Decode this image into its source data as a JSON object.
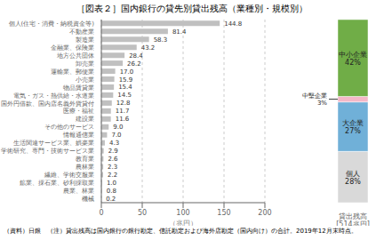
{
  "chart_data": [
    {
      "type": "bar",
      "title": "［図表２］国内銀行の貸先別貸出残高（業種別・規模別）",
      "footnote": "（資料）日銀　（注）貸出残高は国内銀行の銀行勘定、信託勘定および海外店勘定（国内向け）の合計。2019年12月末時点。",
      "orientation": "horizontal",
      "categories": [
        "個人(住宅・消費・納税資金等)",
        "不動産業",
        "製造業",
        "金融業、保険業",
        "地方公共団体",
        "卸売業",
        "運輸業、郵便業",
        "小売業",
        "物品賃貸業",
        "電気・ガス・熱供給・水道業",
        "国外円借款、国内店名義外貨貸付",
        "医療・福祉",
        "建設業",
        "その他のサービス",
        "情報通信業",
        "生活関連サービス業、娯楽業",
        "学術研究、専門・技術サービス業",
        "教育業",
        "農林業",
        "繊維、学術交服業",
        "鉱業、採石業、砂利採取業",
        "農業、林業",
        "機械"
      ],
      "values": [
        144.8,
        81.4,
        58.3,
        43.2,
        28.4,
        26.2,
        17.0,
        15.9,
        15.4,
        14.5,
        12.8,
        11.7,
        11.6,
        9.0,
        7.0,
        4.3,
        2.9,
        2.6,
        2.3,
        2.2,
        1.0,
        0.8,
        0.2
      ],
      "value_labels": [
        "144.8",
        "81.4",
        "58.3",
        "43.2",
        "28.4",
        "26.2",
        "17.0",
        "15.9",
        "15.4",
        "14.5",
        "12.8",
        "11.7",
        "11.6",
        "9.0",
        "7.0",
        "4.3",
        "2.9",
        "2.6",
        "2.3",
        "2.2",
        "1.0",
        "0.8",
        "0.2"
      ],
      "data_labels": true,
      "color": "#c0c0c0",
      "xlabel": "（兆円）",
      "xlim": [
        0,
        200
      ],
      "xticks": [
        0,
        50,
        100,
        150,
        200
      ],
      "grid": true
    },
    {
      "type": "bar",
      "stacked": true,
      "categories": [
        "貸出残高\n[514兆円]"
      ],
      "series": [
        {
          "name": "個人",
          "color": "#d9d9d9",
          "values": [
            28
          ],
          "value_labels": [
            "28%"
          ]
        },
        {
          "name": "大企業",
          "color": "#70b0d8",
          "values": [
            27
          ],
          "value_labels": [
            "27%"
          ]
        },
        {
          "name": "中堅企業",
          "color": "#f4b8c8",
          "values": [
            3
          ],
          "value_labels": [
            "3%"
          ]
        },
        {
          "name": "中小企業",
          "color": "#70ad47",
          "values": [
            42
          ],
          "value_labels": [
            "42%"
          ]
        }
      ],
      "data_labels": true,
      "ylim": [
        0,
        100
      ],
      "tick_labels": false
    }
  ]
}
